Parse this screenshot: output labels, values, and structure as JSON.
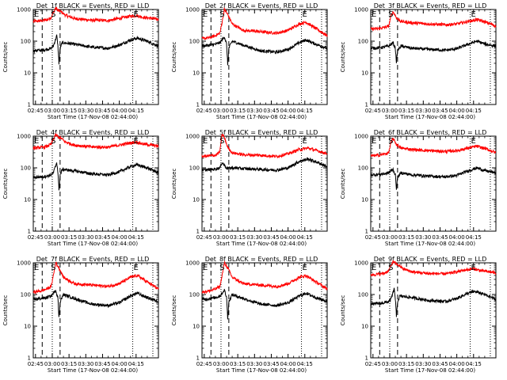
{
  "chart_data": [
    {
      "type": "line",
      "title": "Det_1f BLACK = Events, RED = LLD",
      "xlabel": "Start Time (17-Nov-08 02:44:00)",
      "ylabel": "Counts/sec",
      "yscale": "log",
      "ylim": [
        1,
        1000
      ],
      "xlim_min": [
        163,
        275
      ],
      "xticks": [
        "02:45",
        "03:00",
        "03:15",
        "03:30",
        "03:45",
        "04:00",
        "04:15"
      ],
      "ytick_labels": [
        "1",
        "10",
        "100",
        "1000"
      ],
      "event_markers": [
        {
          "label": "E",
          "x": 163
        },
        {
          "label": "S",
          "x": 178
        },
        {
          "label": "E",
          "x": 252
        }
      ],
      "dashed_lines": [
        171,
        187
      ],
      "dotted_lines": [
        180,
        252,
        270
      ],
      "series": [
        {
          "name": "LLD",
          "color": "#ff0000",
          "shape": "red1"
        },
        {
          "name": "Events",
          "color": "#000000",
          "shape": "black1"
        }
      ]
    },
    {
      "type": "line",
      "title": "Det_2f BLACK = Events, RED = LLD",
      "xlabel": "Start Time (17-Nov-08 02:44:00)",
      "ylabel": "Counts/sec",
      "yscale": "log",
      "ylim": [
        1,
        1000
      ],
      "xlim_min": [
        163,
        275
      ],
      "xticks": [
        "02:45",
        "03:00",
        "03:15",
        "03:30",
        "03:45",
        "04:00",
        "04:15"
      ],
      "ytick_labels": [
        "1",
        "10",
        "100",
        "1000"
      ],
      "event_markers": [
        {
          "label": "E",
          "x": 163
        },
        {
          "label": "S",
          "x": 178
        },
        {
          "label": "E",
          "x": 252
        }
      ],
      "dashed_lines": [
        171,
        187
      ],
      "dotted_lines": [
        180,
        252,
        270
      ],
      "series": [
        {
          "name": "LLD",
          "color": "#ff0000",
          "shape": "red2"
        },
        {
          "name": "Events",
          "color": "#000000",
          "shape": "black2"
        }
      ]
    },
    {
      "type": "line",
      "title": "Det_3f BLACK = Events, RED = LLD",
      "xlabel": "Start Time (17-Nov-08 02:44:00)",
      "ylabel": "Counts/sec",
      "yscale": "log",
      "ylim": [
        1,
        1000
      ],
      "xlim_min": [
        163,
        275
      ],
      "xticks": [
        "02:45",
        "03:00",
        "03:15",
        "03:30",
        "03:45",
        "04:00",
        "04:15"
      ],
      "ytick_labels": [
        "1",
        "10",
        "100",
        "1000"
      ],
      "event_markers": [
        {
          "label": "E",
          "x": 163
        },
        {
          "label": "S",
          "x": 178
        },
        {
          "label": "E",
          "x": 252
        }
      ],
      "dashed_lines": [
        171,
        187
      ],
      "dotted_lines": [
        180,
        252,
        270
      ],
      "series": [
        {
          "name": "LLD",
          "color": "#ff0000",
          "shape": "red3"
        },
        {
          "name": "Events",
          "color": "#000000",
          "shape": "black3"
        }
      ]
    },
    {
      "type": "line",
      "title": "Det_4f BLACK = Events, RED = LLD",
      "xlabel": "Start Time (17-Nov-08 02:44:00)",
      "ylabel": "Counts/sec",
      "yscale": "log",
      "ylim": [
        1,
        1000
      ],
      "xlim_min": [
        163,
        275
      ],
      "xticks": [
        "02:45",
        "03:00",
        "03:15",
        "03:30",
        "03:45",
        "04:00",
        "04:15"
      ],
      "ytick_labels": [
        "1",
        "10",
        "100",
        "1000"
      ],
      "event_markers": [
        {
          "label": "E",
          "x": 163
        },
        {
          "label": "S",
          "x": 178
        },
        {
          "label": "E",
          "x": 252
        }
      ],
      "dashed_lines": [
        171,
        187
      ],
      "dotted_lines": [
        180,
        252,
        270
      ],
      "series": [
        {
          "name": "LLD",
          "color": "#ff0000",
          "shape": "red1"
        },
        {
          "name": "Events",
          "color": "#000000",
          "shape": "black1"
        }
      ]
    },
    {
      "type": "line",
      "title": "Det_5f BLACK = Events, RED = LLD",
      "xlabel": "Start Time (17-Nov-08 02:44:00)",
      "ylabel": "Counts/sec",
      "yscale": "log",
      "ylim": [
        1,
        1000
      ],
      "xlim_min": [
        163,
        275
      ],
      "xticks": [
        "02:45",
        "03:00",
        "03:15",
        "03:30",
        "03:45",
        "04:00",
        "04:15"
      ],
      "ytick_labels": [
        "1",
        "10",
        "100",
        "1000"
      ],
      "event_markers": [
        {
          "label": "E",
          "x": 163
        },
        {
          "label": "S",
          "x": 178
        },
        {
          "label": "E",
          "x": 252
        }
      ],
      "dashed_lines": [
        171,
        187
      ],
      "dotted_lines": [
        180,
        252,
        270
      ],
      "series": [
        {
          "name": "LLD",
          "color": "#ff0000",
          "shape": "red5"
        },
        {
          "name": "Events",
          "color": "#000000",
          "shape": "black5"
        }
      ]
    },
    {
      "type": "line",
      "title": "Det_6f BLACK = Events, RED = LLD",
      "xlabel": "Start Time (17-Nov-08 02:44:00)",
      "ylabel": "Counts/sec",
      "yscale": "log",
      "ylim": [
        1,
        1000
      ],
      "xlim_min": [
        163,
        275
      ],
      "xticks": [
        "02:45",
        "03:00",
        "03:15",
        "03:30",
        "03:45",
        "04:00",
        "04:15"
      ],
      "ytick_labels": [
        "1",
        "10",
        "100",
        "1000"
      ],
      "event_markers": [
        {
          "label": "E",
          "x": 163
        },
        {
          "label": "S",
          "x": 178
        },
        {
          "label": "E",
          "x": 252
        }
      ],
      "dashed_lines": [
        171,
        187
      ],
      "dotted_lines": [
        180,
        252,
        270
      ],
      "series": [
        {
          "name": "LLD",
          "color": "#ff0000",
          "shape": "red3"
        },
        {
          "name": "Events",
          "color": "#000000",
          "shape": "black3"
        }
      ]
    },
    {
      "type": "line",
      "title": "Det_7f BLACK = Events, RED = LLD",
      "xlabel": "Start Time (17-Nov-08 02:44:00)",
      "ylabel": "Counts/sec",
      "yscale": "log",
      "ylim": [
        1,
        1000
      ],
      "xlim_min": [
        163,
        275
      ],
      "xticks": [
        "02:45",
        "03:00",
        "03:15",
        "03:30",
        "03:45",
        "04:00",
        "04:15"
      ],
      "ytick_labels": [
        "1",
        "10",
        "100",
        "1000"
      ],
      "event_markers": [
        {
          "label": "E",
          "x": 163
        },
        {
          "label": "S",
          "x": 178
        },
        {
          "label": "E",
          "x": 252
        }
      ],
      "dashed_lines": [
        171,
        187
      ],
      "dotted_lines": [
        180,
        252,
        270
      ],
      "series": [
        {
          "name": "LLD",
          "color": "#ff0000",
          "shape": "red2"
        },
        {
          "name": "Events",
          "color": "#000000",
          "shape": "black2"
        }
      ]
    },
    {
      "type": "line",
      "title": "Det_8f BLACK = Events, RED = LLD",
      "xlabel": "Start Time (17-Nov-08 02:44:00)",
      "ylabel": "Counts/sec",
      "yscale": "log",
      "ylim": [
        1,
        1000
      ],
      "xlim_min": [
        163,
        275
      ],
      "xticks": [
        "02:45",
        "03:00",
        "03:15",
        "03:30",
        "03:45",
        "04:00",
        "04:15"
      ],
      "ytick_labels": [
        "1",
        "10",
        "100",
        "1000"
      ],
      "event_markers": [
        {
          "label": "E",
          "x": 163
        },
        {
          "label": "S",
          "x": 178
        },
        {
          "label": "E",
          "x": 252
        }
      ],
      "dashed_lines": [
        171,
        187
      ],
      "dotted_lines": [
        180,
        252,
        270
      ],
      "series": [
        {
          "name": "LLD",
          "color": "#ff0000",
          "shape": "red2"
        },
        {
          "name": "Events",
          "color": "#000000",
          "shape": "black2"
        }
      ]
    },
    {
      "type": "line",
      "title": "Det_9f BLACK = Events, RED = LLD",
      "xlabel": "Start Time (17-Nov-08 02:44:00)",
      "ylabel": "Counts/sec",
      "yscale": "log",
      "ylim": [
        1,
        1000
      ],
      "xlim_min": [
        163,
        275
      ],
      "xticks": [
        "02:45",
        "03:00",
        "03:15",
        "03:30",
        "03:45",
        "04:00",
        "04:15"
      ],
      "ytick_labels": [
        "1",
        "10",
        "100",
        "1000"
      ],
      "event_markers": [
        {
          "label": "E",
          "x": 163
        },
        {
          "label": "S",
          "x": 178
        },
        {
          "label": "E",
          "x": 252
        }
      ],
      "dashed_lines": [
        171,
        187
      ],
      "dotted_lines": [
        180,
        252,
        270
      ],
      "series": [
        {
          "name": "LLD",
          "color": "#ff0000",
          "shape": "red1"
        },
        {
          "name": "Events",
          "color": "#000000",
          "shape": "black1"
        }
      ]
    }
  ],
  "profiles": {
    "red1": [
      [
        163,
        420
      ],
      [
        170,
        440
      ],
      [
        175,
        470
      ],
      [
        179,
        560
      ],
      [
        181,
        800
      ],
      [
        183,
        1100
      ],
      [
        186,
        900
      ],
      [
        188,
        850
      ],
      [
        192,
        650
      ],
      [
        200,
        520
      ],
      [
        215,
        460
      ],
      [
        230,
        450
      ],
      [
        240,
        520
      ],
      [
        248,
        600
      ],
      [
        255,
        650
      ],
      [
        262,
        560
      ],
      [
        270,
        520
      ],
      [
        275,
        480
      ]
    ],
    "black1": [
      [
        163,
        50
      ],
      [
        170,
        52
      ],
      [
        175,
        55
      ],
      [
        179,
        60
      ],
      [
        181,
        70
      ],
      [
        184,
        150
      ],
      [
        185,
        75
      ],
      [
        186,
        20
      ],
      [
        187,
        60
      ],
      [
        189,
        90
      ],
      [
        200,
        80
      ],
      [
        215,
        65
      ],
      [
        230,
        60
      ],
      [
        240,
        75
      ],
      [
        250,
        110
      ],
      [
        256,
        125
      ],
      [
        265,
        100
      ],
      [
        275,
        70
      ]
    ],
    "red2": [
      [
        163,
        120
      ],
      [
        170,
        130
      ],
      [
        175,
        150
      ],
      [
        179,
        180
      ],
      [
        181,
        400
      ],
      [
        183,
        1000
      ],
      [
        186,
        700
      ],
      [
        190,
        350
      ],
      [
        200,
        220
      ],
      [
        215,
        200
      ],
      [
        230,
        180
      ],
      [
        240,
        220
      ],
      [
        250,
        350
      ],
      [
        256,
        400
      ],
      [
        265,
        250
      ],
      [
        275,
        150
      ]
    ],
    "black2": [
      [
        163,
        70
      ],
      [
        170,
        75
      ],
      [
        175,
        80
      ],
      [
        179,
        90
      ],
      [
        181,
        110
      ],
      [
        183,
        140
      ],
      [
        185,
        80
      ],
      [
        186,
        18
      ],
      [
        187,
        60
      ],
      [
        190,
        100
      ],
      [
        200,
        75
      ],
      [
        215,
        50
      ],
      [
        230,
        45
      ],
      [
        240,
        55
      ],
      [
        250,
        90
      ],
      [
        256,
        110
      ],
      [
        265,
        80
      ],
      [
        275,
        60
      ]
    ],
    "red3": [
      [
        163,
        240
      ],
      [
        170,
        250
      ],
      [
        175,
        270
      ],
      [
        179,
        300
      ],
      [
        181,
        600
      ],
      [
        183,
        850
      ],
      [
        186,
        550
      ],
      [
        190,
        420
      ],
      [
        200,
        380
      ],
      [
        215,
        350
      ],
      [
        230,
        330
      ],
      [
        240,
        350
      ],
      [
        250,
        420
      ],
      [
        258,
        480
      ],
      [
        266,
        400
      ],
      [
        275,
        300
      ]
    ],
    "black3": [
      [
        163,
        60
      ],
      [
        170,
        62
      ],
      [
        175,
        65
      ],
      [
        179,
        70
      ],
      [
        181,
        80
      ],
      [
        183,
        90
      ],
      [
        185,
        60
      ],
      [
        186,
        22
      ],
      [
        187,
        50
      ],
      [
        190,
        70
      ],
      [
        200,
        60
      ],
      [
        215,
        55
      ],
      [
        230,
        52
      ],
      [
        240,
        58
      ],
      [
        250,
        80
      ],
      [
        258,
        100
      ],
      [
        266,
        80
      ],
      [
        275,
        70
      ]
    ],
    "red5": [
      [
        163,
        230
      ],
      [
        170,
        240
      ],
      [
        175,
        250
      ],
      [
        179,
        320
      ],
      [
        181,
        1200
      ],
      [
        183,
        900
      ],
      [
        186,
        450
      ],
      [
        190,
        300
      ],
      [
        200,
        260
      ],
      [
        215,
        250
      ],
      [
        230,
        230
      ],
      [
        240,
        280
      ],
      [
        250,
        380
      ],
      [
        258,
        420
      ],
      [
        266,
        350
      ],
      [
        275,
        280
      ]
    ],
    "black5": [
      [
        163,
        85
      ],
      [
        170,
        88
      ],
      [
        175,
        92
      ],
      [
        179,
        100
      ],
      [
        181,
        150
      ],
      [
        183,
        120
      ],
      [
        185,
        100
      ],
      [
        186,
        95
      ],
      [
        190,
        100
      ],
      [
        200,
        95
      ],
      [
        215,
        90
      ],
      [
        230,
        85
      ],
      [
        240,
        100
      ],
      [
        250,
        160
      ],
      [
        258,
        190
      ],
      [
        266,
        150
      ],
      [
        275,
        110
      ]
    ]
  }
}
